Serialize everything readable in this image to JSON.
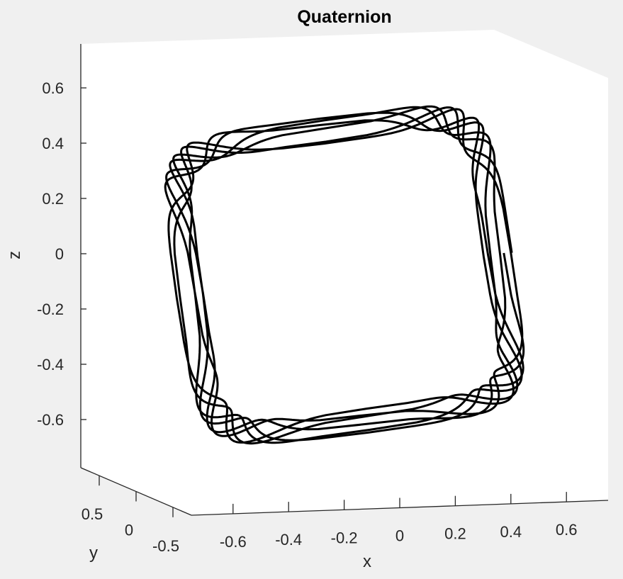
{
  "chart_data": {
    "type": "line3d",
    "title": "Quaternion",
    "xlabel": "x",
    "ylabel": "y",
    "zlabel": "z",
    "xlim": [
      -0.75,
      0.75
    ],
    "ylim": [
      -0.75,
      0.75
    ],
    "zlim": [
      -0.75,
      0.75
    ],
    "xticks": [
      -0.6,
      -0.4,
      -0.2,
      0,
      0.2,
      0.4,
      0.6
    ],
    "yticks": [
      0.5,
      0,
      -0.5
    ],
    "zticks": [
      0.6,
      0.4,
      0.2,
      0,
      -0.2,
      -0.4,
      -0.6
    ],
    "xtick_labels": [
      "-0.6",
      "-0.4",
      "-0.2",
      "0",
      "0.2",
      "0.4",
      "0.6"
    ],
    "ytick_labels": [
      "0.5",
      "0",
      "-0.5"
    ],
    "ztick_labels": [
      "0.6",
      "0.4",
      "0.2",
      "0",
      "-0.2",
      "-0.4",
      "-0.6"
    ],
    "grid": false,
    "box": "partial",
    "series": [
      {
        "curve": "precessing quasi-periodic trajectory forming a toroidal band",
        "color": "#000000",
        "band_radius": 0.66,
        "band_shape_exponent": 0.3,
        "band_tilt_deg": 8,
        "wobble_amplitude": 0.06,
        "fast_oscillation_count": 32,
        "laps": 6,
        "samples": 2400
      }
    ]
  },
  "colors": {
    "figure_background": "#f0f0f0",
    "axes_background": "#ffffff",
    "axis_line": "#262626",
    "data_line": "#000000"
  }
}
